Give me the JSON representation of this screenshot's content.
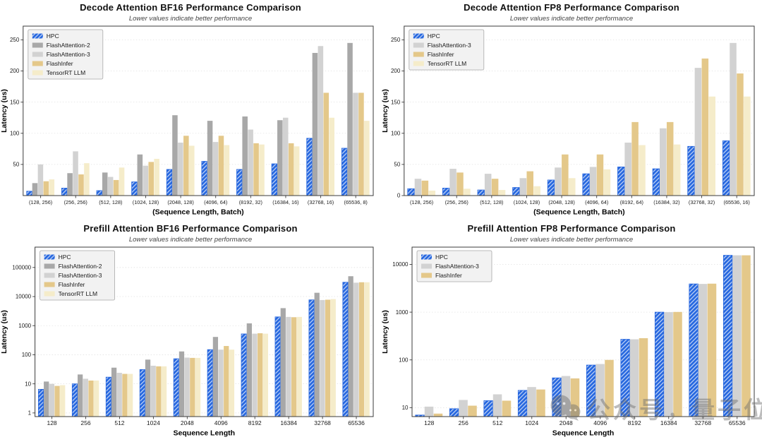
{
  "page": {
    "background": "#ffffff"
  },
  "colors": {
    "hpc": "#2667df",
    "hpc_stripe": "#ffffff",
    "fa2": "#a8a8a8",
    "fa3": "#d2d2d2",
    "flashinfer": "#e4c88a",
    "tensorrt": "#f5ecca",
    "grid": "#e2e2e2",
    "spine": "#3b3b3b",
    "tick_text": "#1a1a1a",
    "legend_bg": "#f2f2f2",
    "legend_border": "#a9a9a9",
    "watermark": "#6e6e6e"
  },
  "watermark": {
    "icon": "wechat-bubbles-icon",
    "prefix": "公众号",
    "separator": "，",
    "suffix": "量子位"
  },
  "chart_data": [
    {
      "type": "bar",
      "title": "Decode Attention BF16 Performance Comparison",
      "subtitle": "Lower values indicate better performance",
      "xlabel": "(Sequence Length, Batch)",
      "ylabel": "Latency (us)",
      "yscale": "linear",
      "ylim": [
        0,
        272
      ],
      "yticks": [
        50,
        100,
        150,
        200,
        250
      ],
      "grid": true,
      "legend_position": "upper-left",
      "categories": [
        "(128, 256)",
        "(256, 256)",
        "(512, 128)",
        "(1024, 128)",
        "(2048, 128)",
        "(4096, 64)",
        "(8192, 32)",
        "(16384, 16)",
        "(32768, 16)",
        "(65536, 8)"
      ],
      "series": [
        {
          "name": "HPC",
          "color_key": "hpc",
          "hatch": true,
          "values": [
            7,
            12,
            8,
            22,
            42,
            55,
            42,
            51,
            92,
            76
          ]
        },
        {
          "name": "FlashAttention-2",
          "color_key": "fa2",
          "hatch": false,
          "values": [
            20,
            36,
            37,
            66,
            129,
            120,
            127,
            121,
            229,
            245
          ]
        },
        {
          "name": "FlashAttention-3",
          "color_key": "fa3",
          "hatch": false,
          "values": [
            50,
            71,
            30,
            48,
            85,
            86,
            106,
            125,
            240,
            165
          ]
        },
        {
          "name": "FlashInfer",
          "color_key": "flashinfer",
          "hatch": false,
          "values": [
            23,
            34,
            25,
            54,
            96,
            96,
            84,
            84,
            165,
            165
          ]
        },
        {
          "name": "TensorRT LLM",
          "color_key": "tensorrt",
          "hatch": false,
          "values": [
            26,
            52,
            45,
            59,
            80,
            81,
            82,
            79,
            125,
            120
          ]
        }
      ]
    },
    {
      "type": "bar",
      "title": "Decode Attention FP8 Performance Comparison",
      "subtitle": "Lower values indicate better performance",
      "xlabel": "(Sequence Length, Batch)",
      "ylabel": "Latency (us)",
      "yscale": "linear",
      "ylim": [
        0,
        272
      ],
      "yticks": [
        0,
        50,
        100,
        150,
        200,
        250
      ],
      "grid": true,
      "legend_position": "upper-left",
      "categories": [
        "(128, 256)",
        "(256, 256)",
        "(512, 128)",
        "(1024, 128)",
        "(2048, 128)",
        "(4096, 64)",
        "(8192, 64)",
        "(16384, 32)",
        "(32768, 32)",
        "(65536, 16)"
      ],
      "series": [
        {
          "name": "HPC",
          "color_key": "hpc",
          "hatch": true,
          "values": [
            11,
            12,
            9,
            13,
            25,
            35,
            46,
            43,
            79,
            88
          ]
        },
        {
          "name": "FlashAttention-3",
          "color_key": "fa3",
          "hatch": false,
          "values": [
            27,
            43,
            35,
            28,
            45,
            46,
            85,
            108,
            205,
            245
          ]
        },
        {
          "name": "FlashInfer",
          "color_key": "flashinfer",
          "hatch": false,
          "values": [
            24,
            37,
            27,
            39,
            66,
            66,
            118,
            118,
            220,
            196
          ]
        },
        {
          "name": "TensorRT LLM",
          "color_key": "tensorrt",
          "hatch": false,
          "values": [
            8,
            11,
            9,
            15,
            28,
            42,
            81,
            82,
            159,
            159
          ]
        }
      ]
    },
    {
      "type": "bar",
      "title": "Prefill Attention BF16 Performance Comparison",
      "subtitle": "Lower values indicate better performance",
      "xlabel": "Sequence Length",
      "ylabel": "Latency (us)",
      "yscale": "log",
      "ylim": [
        0.75,
        500000
      ],
      "yticks": [
        1,
        10,
        100,
        1000,
        10000,
        100000
      ],
      "grid": true,
      "legend_position": "upper-left",
      "categories": [
        "128",
        "256",
        "512",
        "1024",
        "2048",
        "4096",
        "8192",
        "16384",
        "32768",
        "65536"
      ],
      "series": [
        {
          "name": "HPC",
          "color_key": "hpc",
          "hatch": true,
          "values": [
            6.5,
            10,
            17,
            31,
            73,
            150,
            520,
            2000,
            7700,
            31000
          ]
        },
        {
          "name": "FlashAttention-2",
          "color_key": "fa2",
          "hatch": false,
          "values": [
            12,
            21,
            36,
            68,
            130,
            410,
            1200,
            4000,
            13500,
            50000
          ]
        },
        {
          "name": "FlashAttention-3",
          "color_key": "fa3",
          "hatch": false,
          "values": [
            10,
            15,
            24,
            42,
            80,
            150,
            530,
            2000,
            7600,
            30000
          ]
        },
        {
          "name": "FlashInfer",
          "color_key": "flashinfer",
          "hatch": false,
          "values": [
            8.5,
            13,
            22,
            40,
            78,
            200,
            550,
            1950,
            7800,
            31000
          ]
        },
        {
          "name": "TensorRT LLM",
          "color_key": "tensorrt",
          "hatch": false,
          "values": [
            9,
            13,
            22,
            40,
            78,
            150,
            530,
            2000,
            8200,
            31000
          ]
        }
      ]
    },
    {
      "type": "bar",
      "title": "Prefill Attention FP8 Performance Comparison",
      "subtitle": "Lower values indicate better performance",
      "xlabel": "Sequence Length",
      "ylabel": "Latency (us)",
      "yscale": "log",
      "ylim": [
        6.5,
        23000
      ],
      "yticks": [
        10,
        100,
        1000,
        10000
      ],
      "grid": true,
      "legend_position": "upper-left",
      "categories": [
        "128",
        "256",
        "512",
        "1024",
        "2048",
        "4096",
        "8192",
        "16384",
        "32768",
        "65536"
      ],
      "series": [
        {
          "name": "HPC",
          "color_key": "hpc",
          "hatch": true,
          "values": [
            7,
            9.5,
            14,
            23,
            42,
            78,
            270,
            1000,
            3900,
            15500
          ]
        },
        {
          "name": "FlashAttention-3",
          "color_key": "fa3",
          "hatch": false,
          "values": [
            10.5,
            14.5,
            19,
            27,
            46,
            82,
            270,
            1000,
            3900,
            15500
          ]
        },
        {
          "name": "FlashInfer",
          "color_key": "flashinfer",
          "hatch": false,
          "values": [
            7.5,
            11,
            14,
            24,
            41,
            100,
            285,
            1010,
            3950,
            15500
          ]
        }
      ]
    }
  ]
}
